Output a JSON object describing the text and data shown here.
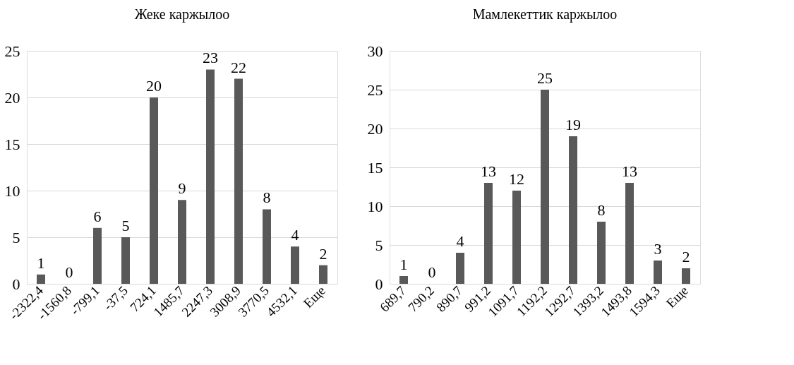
{
  "chart_data": [
    {
      "type": "bar",
      "title": "Жеке каржылоо",
      "categories": [
        "-2322,4",
        "-1560,8",
        "-799,1",
        "-37,5",
        "724,1",
        "1485,7",
        "2247,3",
        "3008,9",
        "3770,5",
        "4532,1",
        "Еще"
      ],
      "values": [
        1,
        0,
        6,
        5,
        20,
        9,
        23,
        22,
        8,
        4,
        2
      ],
      "color": "#595959",
      "ylim": [
        0,
        25
      ],
      "yticks": [
        0,
        5,
        10,
        15,
        20,
        25
      ],
      "grid": "y",
      "data_labels": true
    },
    {
      "type": "bar",
      "title": "Мамлекеттик каржылоо",
      "categories": [
        "689,7",
        "790,2",
        "890,7",
        "991,2",
        "1091,7",
        "1192,2",
        "1292,7",
        "1393,2",
        "1493,8",
        "1594,3",
        "Еще"
      ],
      "values": [
        1,
        0,
        4,
        13,
        12,
        25,
        19,
        8,
        13,
        3,
        2
      ],
      "color": "#595959",
      "ylim": [
        0,
        30
      ],
      "yticks": [
        0,
        5,
        10,
        15,
        20,
        25,
        30
      ],
      "grid": "y",
      "data_labels": true
    }
  ]
}
